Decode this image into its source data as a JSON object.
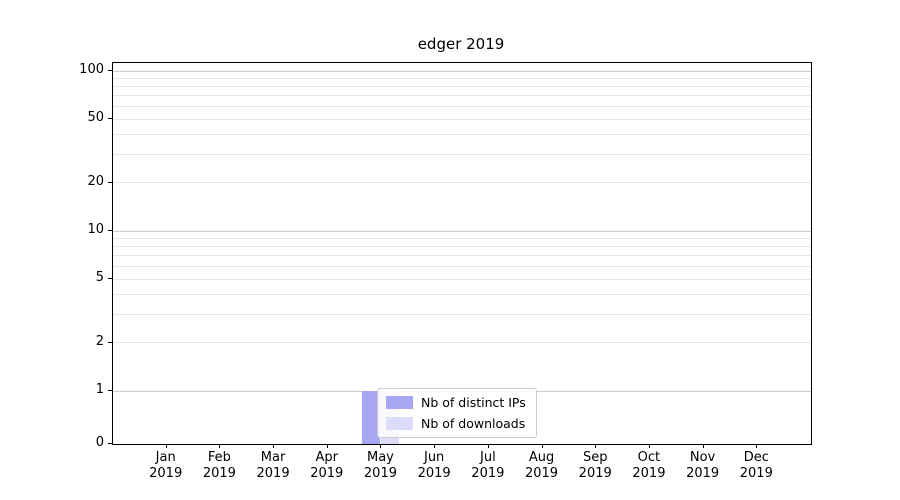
{
  "chart_data": {
    "type": "bar",
    "title": "edger 2019",
    "categories": [
      "Jan 2019",
      "Feb 2019",
      "Mar 2019",
      "Apr 2019",
      "May 2019",
      "Jun 2019",
      "Jul 2019",
      "Aug 2019",
      "Sep 2019",
      "Oct 2019",
      "Nov 2019",
      "Dec 2019"
    ],
    "series": [
      {
        "name": "Nb of distinct IPs",
        "color": "#a6a6f2",
        "values": [
          0,
          0,
          0,
          0,
          1,
          0,
          0,
          0,
          0,
          0,
          0,
          0
        ]
      },
      {
        "name": "Nb of downloads",
        "color": "#dcdcf8",
        "values": [
          0,
          0,
          0,
          0,
          1,
          0,
          0,
          0,
          0,
          0,
          0,
          0
        ]
      }
    ],
    "yticks": [
      0,
      1,
      2,
      5,
      10,
      20,
      50,
      100
    ],
    "yscale": "symlog",
    "ylim": [
      0,
      115
    ],
    "grid": "horizontal-major-and-minor",
    "legend": {
      "position": "inside-bottom-center"
    }
  }
}
